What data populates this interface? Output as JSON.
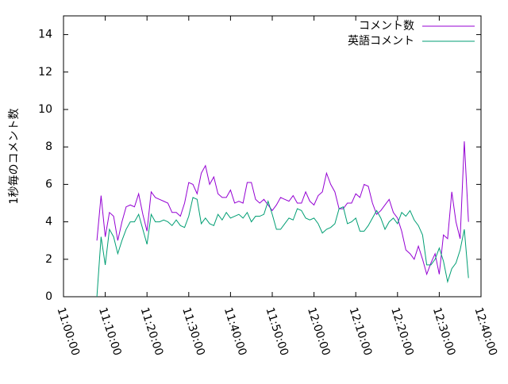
{
  "chart_data": {
    "type": "line",
    "y_label": "1秒毎のコメント数",
    "x": [
      "11:08:00",
      "11:09:00",
      "11:10:00",
      "11:11:00",
      "11:12:00",
      "11:13:00",
      "11:14:00",
      "11:15:00",
      "11:16:00",
      "11:17:00",
      "11:18:00",
      "11:19:00",
      "11:20:00",
      "11:21:00",
      "11:22:00",
      "11:23:00",
      "11:24:00",
      "11:25:00",
      "11:26:00",
      "11:27:00",
      "11:28:00",
      "11:29:00",
      "11:30:00",
      "11:31:00",
      "11:32:00",
      "11:33:00",
      "11:34:00",
      "11:35:00",
      "11:36:00",
      "11:37:00",
      "11:38:00",
      "11:39:00",
      "11:40:00",
      "11:41:00",
      "11:42:00",
      "11:43:00",
      "11:44:00",
      "11:45:00",
      "11:46:00",
      "11:47:00",
      "11:48:00",
      "11:49:00",
      "11:50:00",
      "11:51:00",
      "11:52:00",
      "11:53:00",
      "11:54:00",
      "11:55:00",
      "11:56:00",
      "11:57:00",
      "11:58:00",
      "11:59:00",
      "12:00:00",
      "12:01:00",
      "12:02:00",
      "12:03:00",
      "12:04:00",
      "12:05:00",
      "12:06:00",
      "12:07:00",
      "12:08:00",
      "12:09:00",
      "12:10:00",
      "12:11:00",
      "12:12:00",
      "12:13:00",
      "12:14:00",
      "12:15:00",
      "12:16:00",
      "12:17:00",
      "12:18:00",
      "12:19:00",
      "12:20:00",
      "12:21:00",
      "12:22:00",
      "12:23:00",
      "12:24:00",
      "12:25:00",
      "12:26:00",
      "12:27:00",
      "12:28:00",
      "12:29:00",
      "12:30:00",
      "12:31:00",
      "12:32:00",
      "12:33:00",
      "12:34:00",
      "12:35:00",
      "12:36:00",
      "12:37:00"
    ],
    "series": [
      {
        "name": "コメント数",
        "color": "#9400d3",
        "values": [
          3.0,
          5.4,
          3.2,
          4.5,
          4.3,
          3.0,
          4.0,
          4.8,
          4.9,
          4.8,
          5.5,
          4.4,
          3.5,
          5.6,
          5.3,
          5.2,
          5.1,
          5.0,
          4.5,
          4.5,
          4.3,
          5.0,
          6.1,
          6.0,
          5.5,
          6.6,
          7.0,
          6.0,
          6.4,
          5.5,
          5.3,
          5.3,
          5.7,
          5.0,
          5.1,
          5.0,
          6.1,
          6.1,
          5.2,
          5.0,
          5.2,
          4.9,
          4.6,
          4.9,
          5.3,
          5.2,
          5.1,
          5.4,
          5.0,
          5.0,
          5.6,
          5.1,
          4.9,
          5.4,
          5.6,
          6.6,
          6.0,
          5.6,
          4.7,
          4.7,
          5.0,
          5.0,
          5.5,
          5.3,
          6.0,
          5.9,
          5.0,
          4.4,
          4.6,
          4.9,
          5.2,
          4.5,
          4.2,
          3.5,
          2.5,
          2.3,
          2.0,
          2.7,
          2.0,
          1.2,
          1.8,
          2.3,
          1.2,
          3.3,
          3.1,
          5.6,
          4.0,
          3.1,
          8.3,
          4.0
        ]
      },
      {
        "name": "英語コメント",
        "color": "#009e73",
        "values": [
          0.0,
          3.2,
          1.7,
          3.6,
          3.2,
          2.3,
          3.0,
          3.6,
          4.0,
          4.0,
          4.4,
          3.6,
          2.8,
          4.4,
          4.0,
          4.0,
          4.1,
          4.0,
          3.8,
          4.1,
          3.8,
          3.7,
          4.3,
          5.3,
          5.2,
          3.9,
          4.2,
          3.9,
          3.8,
          4.4,
          4.1,
          4.5,
          4.2,
          4.3,
          4.4,
          4.2,
          4.5,
          4.0,
          4.3,
          4.3,
          4.4,
          5.1,
          4.4,
          3.6,
          3.6,
          3.9,
          4.2,
          4.1,
          4.7,
          4.6,
          4.2,
          4.1,
          4.2,
          3.9,
          3.4,
          3.6,
          3.7,
          3.9,
          4.7,
          4.8,
          3.9,
          4.0,
          4.2,
          3.5,
          3.5,
          3.8,
          4.2,
          4.6,
          4.2,
          3.6,
          4.0,
          4.2,
          3.9,
          4.5,
          4.3,
          4.6,
          4.1,
          3.8,
          3.3,
          1.7,
          1.7,
          2.0,
          2.6,
          1.9,
          0.8,
          1.5,
          1.8,
          2.5,
          3.6,
          1.0
        ]
      }
    ],
    "xlim": [
      "11:00:00",
      "12:40:00"
    ],
    "xticks": [
      "11:00:00",
      "11:10:00",
      "11:20:00",
      "11:30:00",
      "11:40:00",
      "11:50:00",
      "12:00:00",
      "12:10:00",
      "12:20:00",
      "12:30:00",
      "12:40:00"
    ],
    "ylim": [
      0,
      15
    ],
    "yticks": [
      0,
      2,
      4,
      6,
      8,
      10,
      12,
      14
    ],
    "legend": "top-right"
  }
}
